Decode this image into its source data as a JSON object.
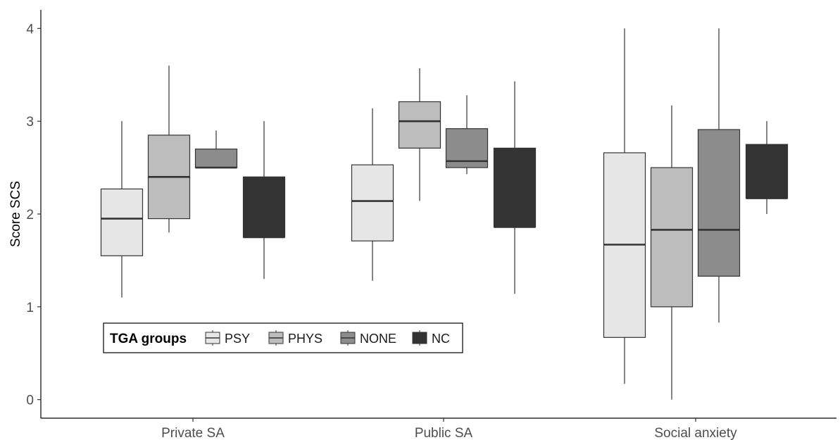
{
  "chart_data": {
    "type": "box",
    "title": "",
    "xlabel": "",
    "ylabel": "Score SCS",
    "ylim": [
      -0.2,
      4.2
    ],
    "yticks": [
      "0",
      "1",
      "2",
      "3",
      "4"
    ],
    "grid": false,
    "categories": [
      "Private SA",
      "Public SA",
      "Social anxiety"
    ],
    "legend": {
      "title": "TGA groups",
      "position": "bottom-left"
    },
    "series": [
      {
        "name": "PSY",
        "color": "#e6e6e6",
        "boxes": [
          {
            "min": 1.1,
            "q1": 1.55,
            "median": 1.95,
            "q3": 2.27,
            "max": 3.0
          },
          {
            "min": 1.28,
            "q1": 1.71,
            "median": 2.14,
            "q3": 2.53,
            "max": 3.14
          },
          {
            "min": 0.17,
            "q1": 0.67,
            "median": 1.67,
            "q3": 2.66,
            "max": 4.0
          }
        ]
      },
      {
        "name": "PHYS",
        "color": "#bdbdbd",
        "boxes": [
          {
            "min": 1.8,
            "q1": 1.95,
            "median": 2.4,
            "q3": 2.85,
            "max": 3.6
          },
          {
            "min": 2.14,
            "q1": 2.71,
            "median": 3.0,
            "q3": 3.21,
            "max": 3.57
          },
          {
            "min": 0.0,
            "q1": 1.0,
            "median": 1.83,
            "q3": 2.5,
            "max": 3.17
          }
        ]
      },
      {
        "name": "NONE",
        "color": "#8c8c8c",
        "boxes": [
          {
            "min": 2.5,
            "q1": 2.5,
            "median": 2.5,
            "q3": 2.7,
            "max": 2.9
          },
          {
            "min": 2.43,
            "q1": 2.5,
            "median": 2.57,
            "q3": 2.92,
            "max": 3.28
          },
          {
            "min": 0.83,
            "q1": 1.33,
            "median": 1.83,
            "q3": 2.91,
            "max": 4.0
          }
        ]
      },
      {
        "name": "NC",
        "color": "#333333",
        "boxes": [
          {
            "min": 1.3,
            "q1": 1.75,
            "median": 1.75,
            "q3": 2.4,
            "max": 3.0
          },
          {
            "min": 1.14,
            "q1": 1.86,
            "median": 1.86,
            "q3": 2.71,
            "max": 3.43
          },
          {
            "min": 2.0,
            "q1": 2.17,
            "median": 2.17,
            "q3": 2.75,
            "max": 3.0
          }
        ]
      }
    ]
  }
}
